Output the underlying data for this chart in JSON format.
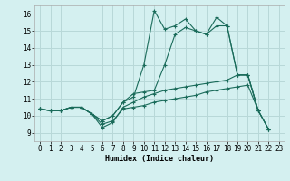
{
  "background_color": "#d4f0f0",
  "grid_color": "#b8d8d8",
  "line_color": "#1a6b5a",
  "xlabel": "Humidex (Indice chaleur)",
  "xlim": [
    -0.5,
    23.5
  ],
  "ylim": [
    8.5,
    16.5
  ],
  "xticks": [
    0,
    1,
    2,
    3,
    4,
    5,
    6,
    7,
    8,
    9,
    10,
    11,
    12,
    13,
    14,
    15,
    16,
    17,
    18,
    19,
    20,
    21,
    22,
    23
  ],
  "yticks": [
    9,
    10,
    11,
    12,
    13,
    14,
    15,
    16
  ],
  "s1_x": [
    0,
    1,
    2,
    3,
    4,
    5,
    6,
    7,
    8,
    9,
    10,
    11,
    12,
    13,
    14,
    15,
    16,
    17,
    18,
    19,
    20,
    21
  ],
  "s1_y": [
    10.4,
    10.3,
    10.3,
    10.5,
    10.5,
    10.1,
    9.7,
    10.0,
    10.8,
    11.1,
    13.0,
    16.2,
    15.1,
    15.3,
    15.7,
    15.0,
    14.8,
    15.8,
    15.3,
    12.4,
    12.4,
    10.3
  ],
  "s2_x": [
    0,
    1,
    2,
    3,
    4,
    5,
    6,
    7,
    8,
    9,
    10,
    11,
    12,
    13,
    14,
    15,
    16,
    17,
    18,
    19,
    20,
    21,
    22
  ],
  "s2_y": [
    10.4,
    10.3,
    10.3,
    10.5,
    10.5,
    10.1,
    9.7,
    10.0,
    10.8,
    11.3,
    11.4,
    11.5,
    13.0,
    14.8,
    15.2,
    15.0,
    14.8,
    15.3,
    15.3,
    12.4,
    12.4,
    10.3,
    9.2
  ],
  "s3_x": [
    0,
    1,
    2,
    3,
    4,
    5,
    6,
    7,
    8,
    9,
    10,
    11,
    12,
    13,
    14,
    15,
    16,
    17,
    18,
    19,
    20,
    21,
    22
  ],
  "s3_y": [
    10.4,
    10.3,
    10.3,
    10.5,
    10.5,
    10.1,
    9.5,
    9.7,
    10.4,
    10.5,
    10.6,
    10.8,
    10.9,
    11.0,
    11.1,
    11.2,
    11.4,
    11.5,
    11.6,
    11.7,
    11.8,
    10.3,
    9.2
  ],
  "s4_x": [
    0,
    1,
    2,
    3,
    4,
    5,
    6,
    7,
    8,
    9,
    10,
    11,
    12,
    13,
    14,
    15,
    16,
    17,
    18,
    19,
    20,
    21,
    22
  ],
  "s4_y": [
    10.4,
    10.3,
    10.3,
    10.5,
    10.5,
    10.1,
    9.3,
    9.6,
    10.5,
    10.8,
    11.1,
    11.3,
    11.5,
    11.6,
    11.7,
    11.8,
    11.9,
    12.0,
    12.1,
    12.4,
    12.4,
    10.3,
    9.2
  ]
}
